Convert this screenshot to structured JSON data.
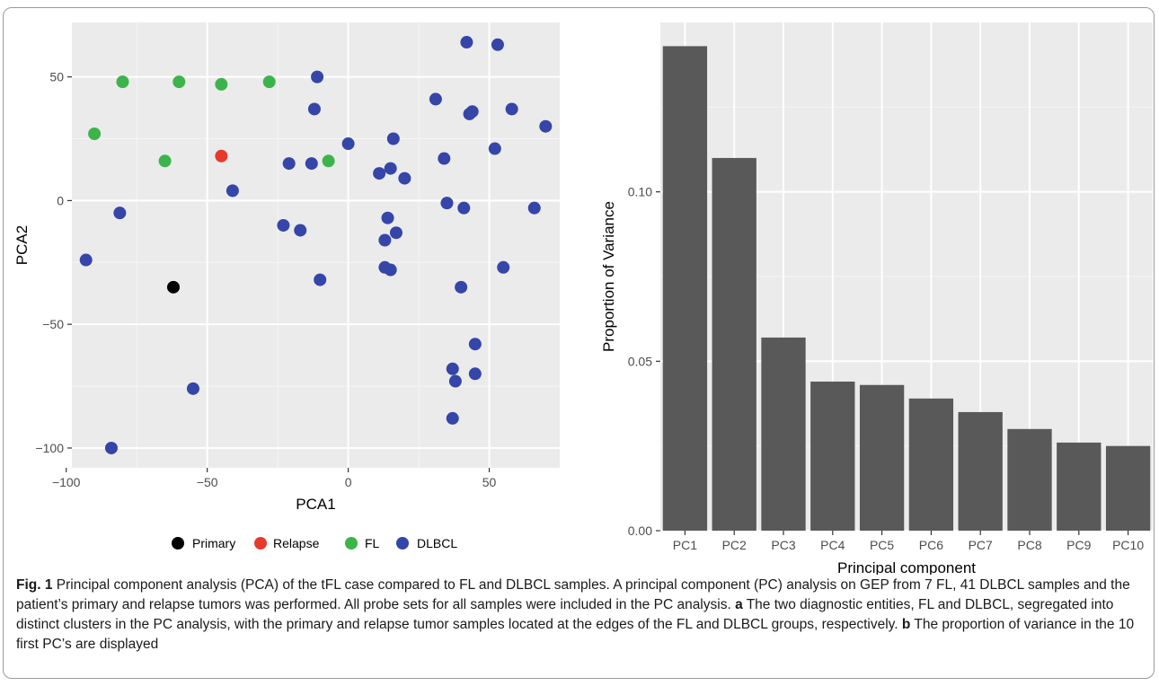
{
  "chart_data": [
    {
      "type": "scatter",
      "xlabel": "PCA1",
      "ylabel": "PCA2",
      "xlim": [
        -98,
        75
      ],
      "ylim": [
        -108,
        72
      ],
      "x_ticks": [
        -100,
        -50,
        0,
        50
      ],
      "y_ticks": [
        -100,
        -50,
        0,
        50
      ],
      "grid": true,
      "legend_position": "bottom",
      "series": [
        {
          "name": "Primary",
          "color": "#000000",
          "points": [
            [
              -62,
              -35
            ]
          ]
        },
        {
          "name": "Relapse",
          "color": "#e8392b",
          "points": [
            [
              -45,
              18
            ]
          ]
        },
        {
          "name": "FL",
          "color": "#3cb44b",
          "points": [
            [
              -80,
              48
            ],
            [
              -60,
              48
            ],
            [
              -45,
              47
            ],
            [
              -28,
              48
            ],
            [
              -90,
              27
            ],
            [
              -65,
              16
            ],
            [
              -7,
              16
            ]
          ]
        },
        {
          "name": "DLBCL",
          "color": "#3545a8",
          "points": [
            [
              42,
              64
            ],
            [
              53,
              63
            ],
            [
              -11,
              50
            ],
            [
              -12,
              37
            ],
            [
              31,
              41
            ],
            [
              44,
              36
            ],
            [
              43,
              35
            ],
            [
              58,
              37
            ],
            [
              70,
              30
            ],
            [
              0,
              23
            ],
            [
              16,
              25
            ],
            [
              52,
              21
            ],
            [
              34,
              17
            ],
            [
              -21,
              15
            ],
            [
              -13,
              15
            ],
            [
              11,
              11
            ],
            [
              15,
              13
            ],
            [
              20,
              9
            ],
            [
              -41,
              4
            ],
            [
              35,
              -1
            ],
            [
              41,
              -3
            ],
            [
              66,
              -3
            ],
            [
              -81,
              -5
            ],
            [
              14,
              -7
            ],
            [
              -23,
              -10
            ],
            [
              -17,
              -12
            ],
            [
              17,
              -13
            ],
            [
              13,
              -16
            ],
            [
              -93,
              -24
            ],
            [
              13,
              -27
            ],
            [
              15,
              -28
            ],
            [
              55,
              -27
            ],
            [
              -10,
              -32
            ],
            [
              40,
              -35
            ],
            [
              45,
              -58
            ],
            [
              37,
              -68
            ],
            [
              45,
              -70
            ],
            [
              38,
              -73
            ],
            [
              -55,
              -76
            ],
            [
              37,
              -88
            ],
            [
              -84,
              -100
            ]
          ]
        }
      ]
    },
    {
      "type": "bar",
      "xlabel": "Principal component",
      "ylabel": "Proportion of Variance",
      "categories": [
        "PC1",
        "PC2",
        "PC3",
        "PC4",
        "PC5",
        "PC6",
        "PC7",
        "PC8",
        "PC9",
        "PC10"
      ],
      "values": [
        0.143,
        0.11,
        0.057,
        0.044,
        0.043,
        0.039,
        0.035,
        0.03,
        0.026,
        0.025
      ],
      "ylim": [
        0,
        0.15
      ],
      "y_ticks": [
        0.0,
        0.05,
        0.1
      ],
      "y_tick_labels": [
        "0.00",
        "0.05",
        "0.10"
      ],
      "grid": true,
      "bar_color": "#595959"
    }
  ],
  "caption": {
    "fig_label": "Fig. 1",
    "text_1": " Principal component analysis (PCA) of the tFL case compared to FL and DLBCL samples. A principal component (PC) analysis on GEP from 7 FL, 41 DLBCL samples and the patient’s primary and relapse tumors was performed. All probe sets for all samples were included in the PC analysis. ",
    "label_a": "a",
    "text_a": " The two diagnostic entities, FL and DLBCL, segregated into distinct clusters in the PC analysis, with the primary and relapse tumor samples located at the edges of the FL and DLBCL groups, respectively. ",
    "label_b": "b",
    "text_b": " The proportion of variance in the 10 first PC’s are displayed"
  }
}
